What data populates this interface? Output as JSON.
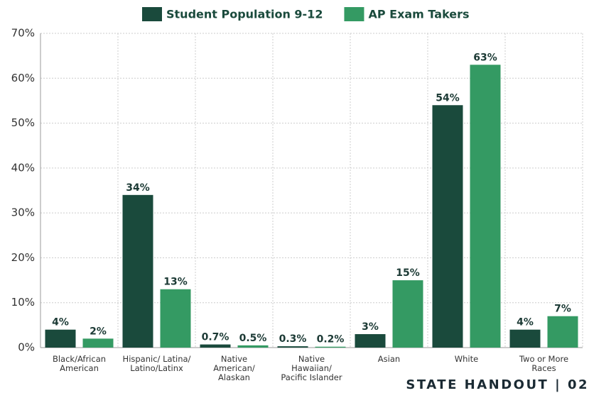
{
  "chart_data": {
    "type": "bar",
    "categories": [
      "Black/African American",
      "Hispanic/ Latina/ Latino/Latinx",
      "Native American/ Alaskan",
      "Native Hawaiian/ Pacific Islander",
      "Asian",
      "White",
      "Two or More Races"
    ],
    "series": [
      {
        "name": "Student Population 9-12",
        "color": "#1a4a3c",
        "values": [
          4,
          34,
          0.7,
          0.3,
          3,
          54,
          4
        ],
        "value_labels": [
          "4%",
          "34%",
          "0.7%",
          "0.3%",
          "3%",
          "54%",
          "4%"
        ]
      },
      {
        "name": "AP Exam Takers",
        "color": "#349a63",
        "values": [
          2,
          13,
          0.5,
          0.2,
          15,
          63,
          7
        ],
        "value_labels": [
          "2%",
          "13%",
          "0.5%",
          "0.2%",
          "15%",
          "63%",
          "7%"
        ]
      }
    ],
    "ylim": [
      0,
      70
    ],
    "yticks": [
      {
        "value": 0,
        "label": "0%"
      },
      {
        "value": 10,
        "label": "10%"
      },
      {
        "value": 20,
        "label": "20%"
      },
      {
        "value": 30,
        "label": "30%"
      },
      {
        "value": 40,
        "label": "40%"
      },
      {
        "value": 50,
        "label": "50%"
      },
      {
        "value": 60,
        "label": "60%"
      },
      {
        "value": 70,
        "label": "70%"
      }
    ],
    "grid": true,
    "legend": "top",
    "footer": "STATE HANDOUT | 02"
  }
}
